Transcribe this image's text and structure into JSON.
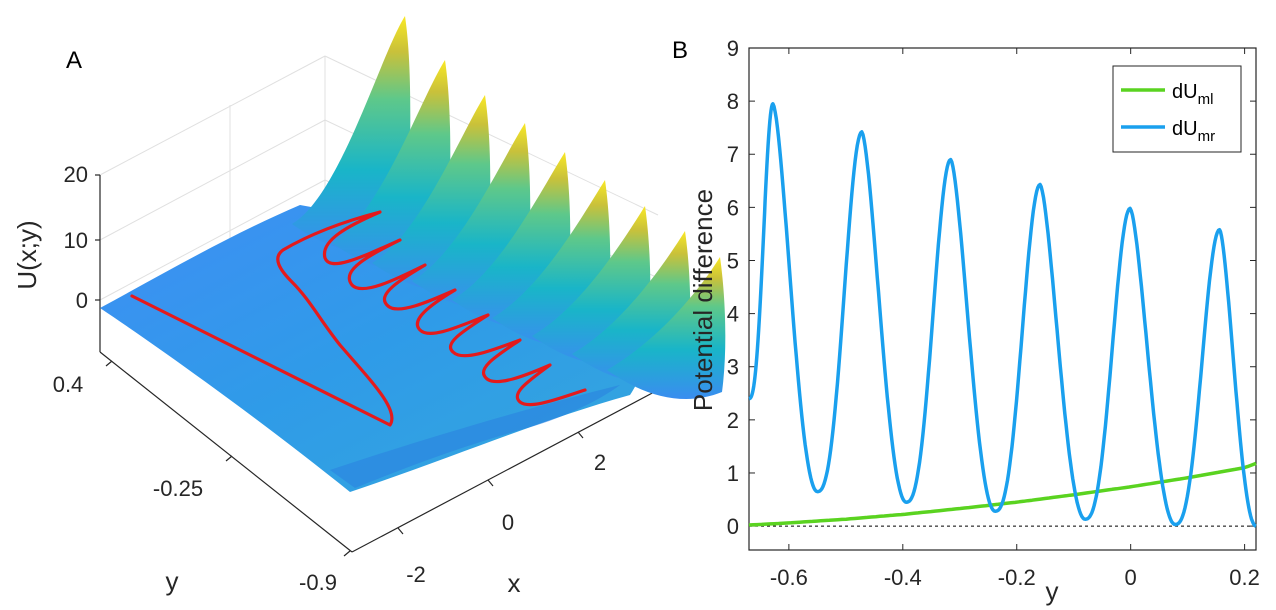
{
  "chart_data": [
    {
      "panel_label": "A",
      "type": "surface3d",
      "zlabel": "U(x;y)",
      "xlabel": "x",
      "ylabel": "y",
      "x_ticks": [
        "-2",
        "0",
        "2"
      ],
      "y_ticks": [
        "-0.9",
        "-0.25",
        "0.4"
      ],
      "z_ticks": [
        "0",
        "10",
        "20"
      ],
      "surface_colormap": "parula",
      "contour_color": "#e41a1c",
      "grid": true
    },
    {
      "panel_label": "B",
      "type": "line",
      "xlabel": "y",
      "ylabel": "Potential difference",
      "xlim": [
        -0.67,
        0.22
      ],
      "ylim": [
        -0.45,
        9
      ],
      "x_ticks": [
        -0.6,
        -0.4,
        -0.2,
        0,
        0.2
      ],
      "x_tick_labels": [
        "-0.6",
        "-0.4",
        "-0.2",
        "0",
        "0.2"
      ],
      "y_ticks": [
        0,
        1,
        2,
        3,
        4,
        5,
        6,
        7,
        8,
        9
      ],
      "y_tick_labels": [
        "0",
        "1",
        "2",
        "3",
        "4",
        "5",
        "6",
        "7",
        "8",
        "9"
      ],
      "legend_position": "top-right",
      "reference_line_y": 0,
      "series": [
        {
          "name_base": "dU",
          "name_sub": "ml",
          "color": "#5ad320",
          "x": [
            -0.67,
            -0.6,
            -0.5,
            -0.4,
            -0.3,
            -0.2,
            -0.1,
            0.0,
            0.1,
            0.2,
            0.22
          ],
          "y": [
            0.02,
            0.06,
            0.13,
            0.22,
            0.33,
            0.45,
            0.59,
            0.74,
            0.91,
            1.1,
            1.18
          ]
        },
        {
          "name_base": "dU",
          "name_sub": "mr",
          "color": "#1aa0ee",
          "peaks_x": [
            -0.628,
            -0.472,
            -0.316,
            -0.159,
            -0.001,
            0.156
          ],
          "peaks_y": [
            7.95,
            7.42,
            6.9,
            6.43,
            5.98,
            5.58
          ],
          "minima_x": [
            -0.55,
            -0.394,
            -0.238,
            -0.08,
            0.078,
            0.22
          ],
          "minima_y": [
            0.65,
            0.45,
            0.28,
            0.13,
            0.03,
            0.0
          ],
          "start": [
            -0.67,
            2.4
          ]
        }
      ]
    }
  ]
}
